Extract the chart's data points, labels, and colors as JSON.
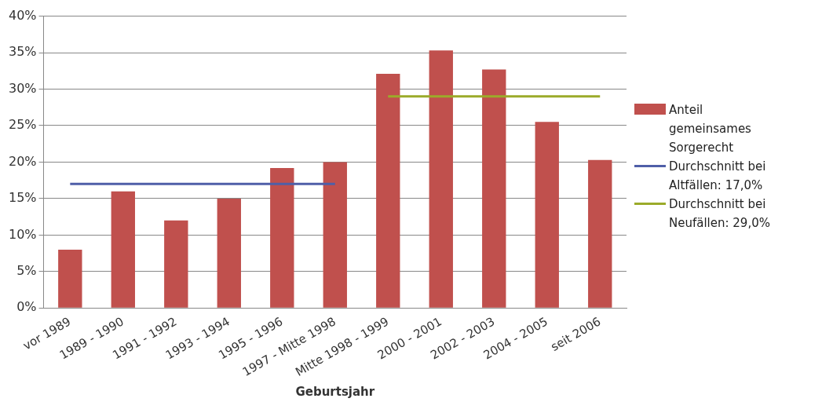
{
  "chart_data": {
    "type": "bar",
    "xlabel": "Geburtsjahr",
    "categories": [
      "vor 1989",
      "1989 - 1990",
      "1991 - 1992",
      "1993 - 1994",
      "1995 - 1996",
      "1997 - Mitte 1998",
      "Mitte 1998 - 1999",
      "2000 - 2001",
      "2002 - 2003",
      "2004 - 2005",
      "seit 2006"
    ],
    "series": [
      {
        "name": "Anteil gemeinsames Sorgerecht",
        "color": "#c0504d",
        "values": [
          8,
          16,
          12,
          15,
          19.2,
          20,
          32.1,
          35.3,
          32.7,
          25.5,
          20.3
        ]
      },
      {
        "name": "Durchschnitt bei Altfällen: 17,0%",
        "type": "line",
        "color": "#4f5fa8",
        "values": [
          17,
          17,
          17,
          17,
          17,
          17,
          null,
          null,
          null,
          null,
          null
        ]
      },
      {
        "name": "Durchschnitt bei Neufällen: 29,0%",
        "type": "line",
        "color": "#9bab2a",
        "values": [
          null,
          null,
          null,
          null,
          null,
          null,
          29,
          29,
          29,
          29,
          29
        ]
      }
    ],
    "ylim": [
      0,
      40
    ],
    "yticks": [
      {
        "value": 0,
        "label": "0%"
      },
      {
        "value": 5,
        "label": "5%"
      },
      {
        "value": 10,
        "label": "10%"
      },
      {
        "value": 15,
        "label": "15%"
      },
      {
        "value": 20,
        "label": "20%"
      },
      {
        "value": 25,
        "label": "25%"
      },
      {
        "value": 30,
        "label": "30%"
      },
      {
        "value": 35,
        "label": "35%"
      },
      {
        "value": 40,
        "label": "40%"
      }
    ],
    "grid": "y",
    "legend": "right",
    "marker": "none"
  }
}
